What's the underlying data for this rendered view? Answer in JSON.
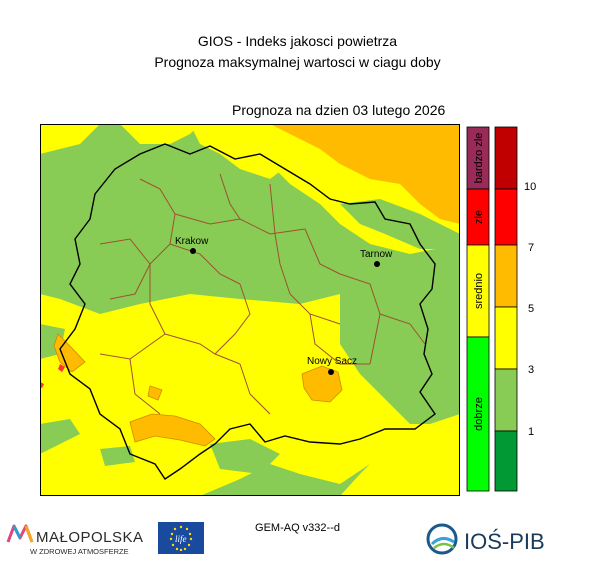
{
  "title_line1": "GIOS - Indeks jakosci powietrza",
  "title_line2": "Prognoza maksymalnej wartosci w ciagu doby",
  "forecast_date": "Prognoza na dzien  03 lutego 2026",
  "model_label": "GEM-AQ v332--d",
  "cities": [
    {
      "name": "Krakow"
    },
    {
      "name": "Tarnow"
    },
    {
      "name": "Nowy Sacz"
    }
  ],
  "category_legend": [
    {
      "label": "bardzo zle",
      "color": "#9a2a57"
    },
    {
      "label": "zle",
      "color": "#ff0000"
    },
    {
      "label": "srednio",
      "color": "#ffff00"
    },
    {
      "label": "dobrze",
      "color": "#00ff00"
    }
  ],
  "scale_legend": {
    "colors": [
      "#009933",
      "#88cc55",
      "#ffff00",
      "#ffbb00",
      "#ff0000",
      "#c00000"
    ],
    "ticks": [
      "1",
      "3",
      "5",
      "7",
      "10"
    ]
  },
  "map_colors": {
    "green": "#88cc55",
    "yellow": "#ffff00",
    "orange": "#ffbb00",
    "red": "#ff0000",
    "border_outer": "#000000",
    "border_inner": "#a05030"
  },
  "logos": {
    "malopolska_name": "MAŁOPOLSKA",
    "malopolska_tagline": "W ZDROWEJ ATMOSFERZE",
    "eu_life": "life",
    "iosp": "IOŚ-PIB"
  }
}
